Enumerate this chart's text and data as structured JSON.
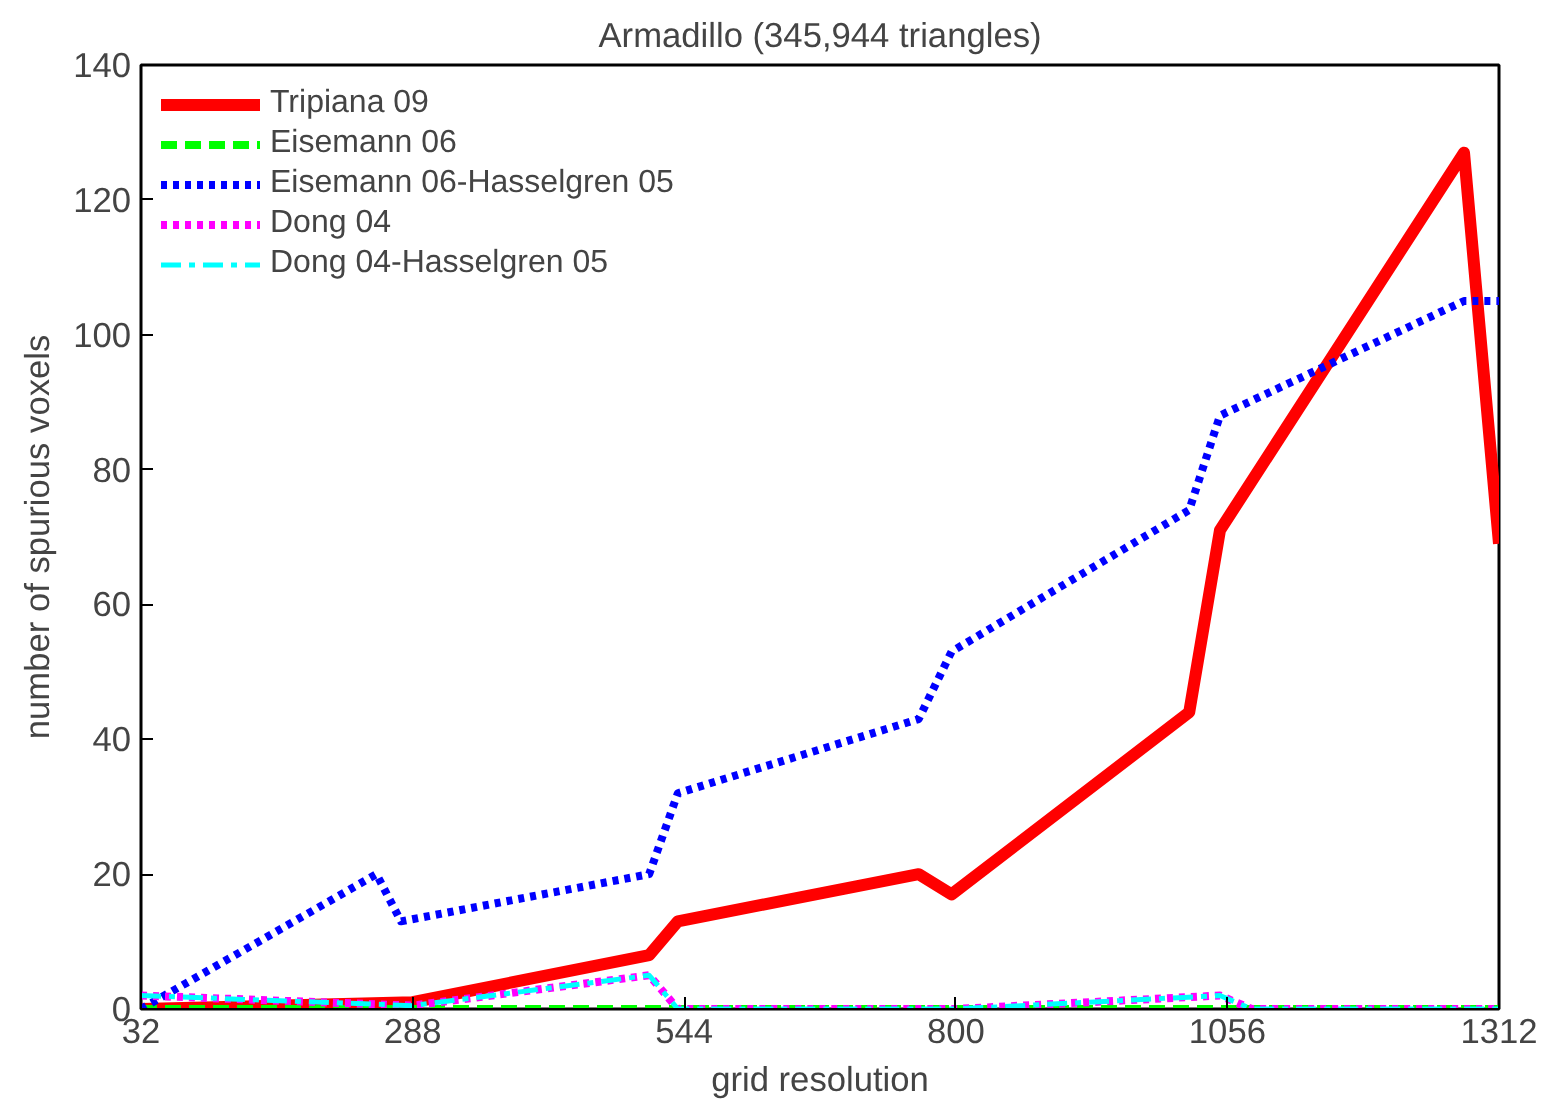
{
  "chart_data": {
    "type": "line",
    "title": "Armadillo (345,944 triangles)",
    "xlabel": "grid resolution",
    "ylabel": "number of spurious voxels",
    "xlim": [
      32,
      1312
    ],
    "xticks": [
      32,
      288,
      544,
      800,
      1056,
      1312
    ],
    "ylim": [
      0,
      140
    ],
    "yticks": [
      0,
      20,
      40,
      60,
      80,
      100,
      120,
      140
    ],
    "grid": false,
    "legend": "top left",
    "series": [
      {
        "name": "Tripiana 09",
        "color": "#ff0000",
        "line_style": "solid",
        "x": [
          32,
          288,
          511,
          538,
          765,
          796,
          1020,
          1049,
          1279,
          1312
        ],
        "values": [
          0,
          1,
          8,
          13,
          20,
          17,
          44,
          71,
          127,
          69
        ]
      },
      {
        "name": "Eisemann 06",
        "color": "#00ff00",
        "line_style": "dashed",
        "x": [
          32,
          1312
        ],
        "values": [
          0,
          0
        ]
      },
      {
        "name": "Eisemann 06-Hasselgren 05",
        "color": "#0000ff",
        "line_style": "dotted",
        "x": [
          32,
          254,
          277,
          511,
          538,
          765,
          796,
          1020,
          1049,
          1279,
          1312
        ],
        "values": [
          0,
          20,
          13,
          20,
          32,
          43,
          53,
          74,
          88,
          105,
          105
        ]
      },
      {
        "name": "Dong 04",
        "color": "#ff00ff",
        "line_style": "dotted",
        "x": [
          32,
          288,
          511,
          538,
          800,
          1049,
          1079,
          1312
        ],
        "values": [
          2,
          0.5,
          5,
          0,
          0,
          2,
          0,
          0
        ]
      },
      {
        "name": "Dong 04-Hasselgren 05",
        "color": "#00ffff",
        "line_style": "dashdot",
        "x": [
          32,
          288,
          511,
          538,
          800,
          1049,
          1079,
          1312
        ],
        "values": [
          2,
          0.5,
          5,
          0,
          0,
          2,
          0,
          0
        ]
      }
    ]
  }
}
